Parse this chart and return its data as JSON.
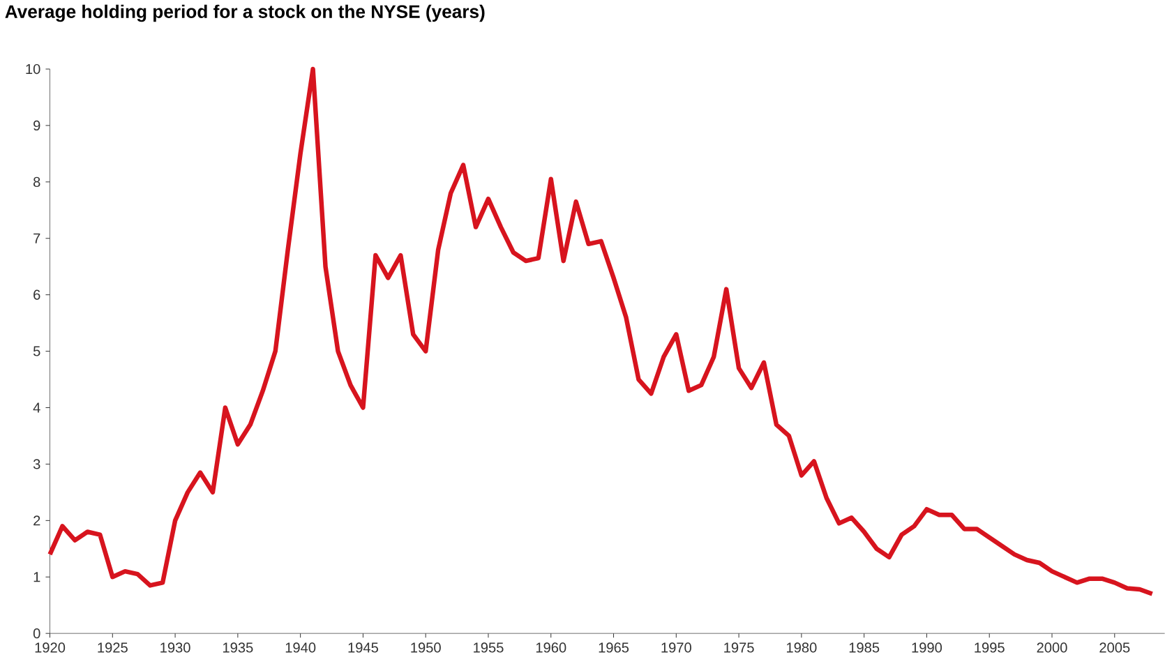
{
  "chart_data": {
    "type": "line",
    "title": "Average holding period for a stock on the NYSE (years)",
    "x": [
      1920,
      1921,
      1922,
      1923,
      1924,
      1925,
      1926,
      1927,
      1928,
      1929,
      1930,
      1931,
      1932,
      1933,
      1934,
      1935,
      1936,
      1937,
      1938,
      1939,
      1940,
      1941,
      1942,
      1943,
      1944,
      1945,
      1946,
      1947,
      1948,
      1949,
      1950,
      1951,
      1952,
      1953,
      1954,
      1955,
      1956,
      1957,
      1958,
      1959,
      1960,
      1961,
      1962,
      1963,
      1964,
      1965,
      1966,
      1967,
      1968,
      1969,
      1970,
      1971,
      1972,
      1973,
      1974,
      1975,
      1976,
      1977,
      1978,
      1979,
      1980,
      1981,
      1982,
      1983,
      1984,
      1985,
      1986,
      1987,
      1988,
      1989,
      1990,
      1991,
      1992,
      1993,
      1994,
      1995,
      1996,
      1997,
      1998,
      1999,
      2000,
      2001,
      2002,
      2003,
      2004,
      2005,
      2006,
      2007,
      2008
    ],
    "series": [
      {
        "color": "#d7141e",
        "values": [
          1.4,
          1.9,
          1.65,
          1.8,
          1.75,
          1.0,
          1.1,
          1.05,
          0.85,
          0.9,
          2.0,
          2.5,
          2.85,
          2.5,
          4.0,
          3.35,
          3.7,
          4.3,
          5.0,
          6.8,
          8.5,
          10.0,
          6.5,
          5.0,
          4.4,
          4.0,
          6.7,
          6.3,
          6.7,
          5.3,
          5.0,
          6.8,
          7.8,
          8.3,
          7.2,
          7.7,
          7.2,
          6.75,
          6.6,
          6.65,
          8.05,
          6.6,
          7.65,
          6.9,
          6.95,
          6.3,
          5.6,
          4.5,
          4.25,
          4.9,
          5.3,
          4.3,
          4.4,
          4.9,
          6.1,
          4.7,
          4.35,
          4.8,
          3.7,
          3.5,
          2.8,
          3.05,
          2.4,
          1.95,
          2.05,
          1.8,
          1.5,
          1.35,
          1.75,
          1.9,
          2.2,
          2.1,
          2.1,
          1.85,
          1.85,
          1.7,
          1.55,
          1.4,
          1.3,
          1.25,
          1.1,
          1.0,
          0.9,
          0.97,
          0.97,
          0.9,
          0.8,
          0.78,
          0.7
        ]
      }
    ],
    "xlim": [
      1920,
      2009
    ],
    "ylim": [
      0,
      10
    ],
    "xticks": [
      1920,
      1925,
      1930,
      1935,
      1940,
      1945,
      1950,
      1955,
      1960,
      1965,
      1970,
      1975,
      1980,
      1985,
      1990,
      1995,
      2000,
      2005
    ],
    "yticks": [
      0,
      1,
      2,
      3,
      4,
      5,
      6,
      7,
      8,
      9,
      10
    ],
    "grid": false,
    "marker": "none",
    "line_style": "solid"
  }
}
